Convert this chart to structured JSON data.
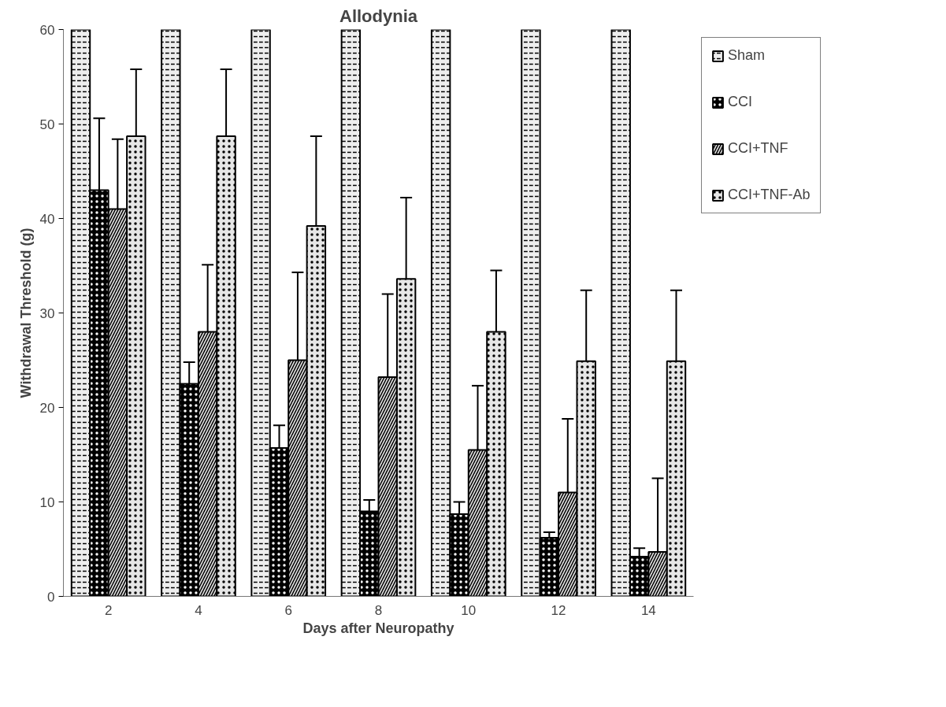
{
  "chart_data": {
    "type": "bar",
    "title": "Allodynia",
    "xlabel": "Days after Neuropathy",
    "ylabel": "Withdrawal Threshold (g)",
    "categories": [
      "2",
      "4",
      "6",
      "8",
      "10",
      "12",
      "14"
    ],
    "series": [
      {
        "name": "Sham",
        "color": "#eeeeee",
        "values": [
          60,
          60,
          60,
          60,
          60,
          60,
          60
        ]
      },
      {
        "name": "CCI",
        "color": "#000000",
        "values": [
          43,
          22.5,
          15.7,
          9,
          8.7,
          6.2,
          4.2
        ],
        "errors": [
          [
            43,
            50.6
          ],
          [
            22.5,
            24.8
          ],
          [
            15.7,
            18.1
          ],
          [
            9,
            10.2
          ],
          [
            8.7,
            10
          ],
          [
            6.2,
            6.8
          ],
          [
            4.2,
            5.1
          ]
        ]
      },
      {
        "name": "CCI+TNF",
        "color": "#dddddd",
        "values": [
          41,
          28,
          25,
          23.2,
          15.5,
          11,
          4.7
        ],
        "errors": [
          [
            41,
            48.4
          ],
          [
            28,
            35.1
          ],
          [
            25,
            34.3
          ],
          [
            23.2,
            32
          ],
          [
            15.5,
            22.3
          ],
          [
            11,
            18.8
          ],
          [
            4.7,
            12.5
          ]
        ]
      },
      {
        "name": "CCI+TNF-Ab",
        "color": "#e6e6e6",
        "values": [
          48.7,
          48.7,
          39.2,
          33.6,
          28,
          24.9,
          24.9
        ],
        "errors": [
          [
            48.7,
            55.8
          ],
          [
            48.7,
            55.8
          ],
          [
            39.2,
            48.7
          ],
          [
            33.6,
            42.2
          ],
          [
            28,
            34.5
          ],
          [
            24.9,
            32.4
          ],
          [
            24.9,
            32.4
          ]
        ]
      }
    ],
    "ylim": [
      0,
      60
    ],
    "yticks": [
      0,
      10,
      20,
      30,
      40,
      50,
      60
    ],
    "grid": false,
    "legend": "top right"
  }
}
